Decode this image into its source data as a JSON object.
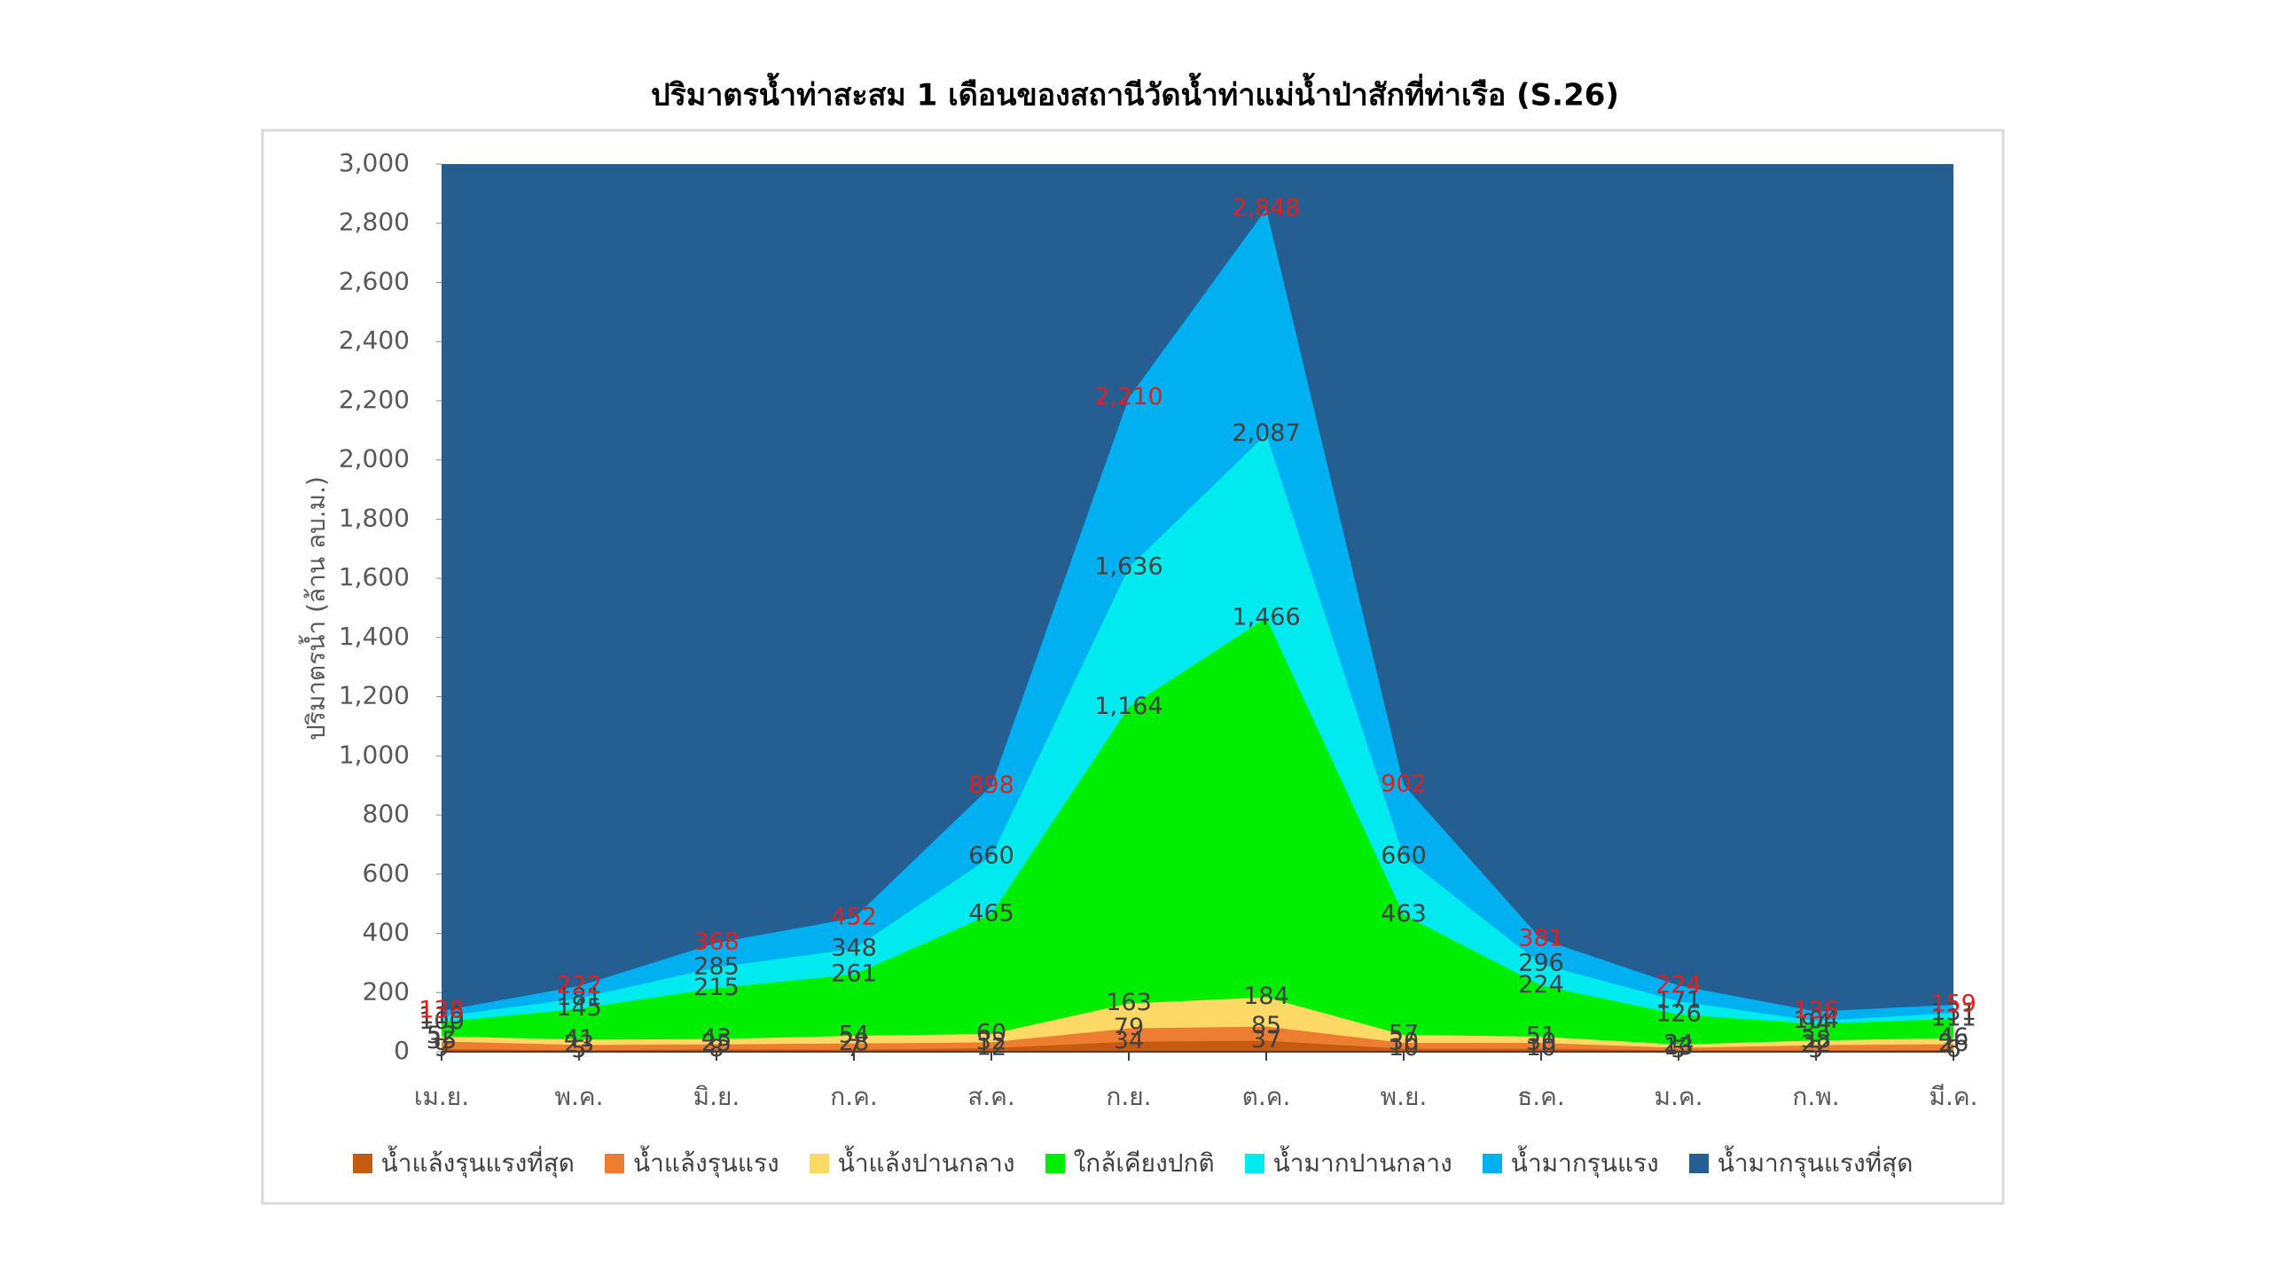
{
  "chart_data": {
    "type": "area",
    "title": "ปริมาตรน้ำท่าสะสม 1 เดือนของสถานีวัดน้ำท่าแม่น้ำป่าสักที่ท่าเรือ (S.26)",
    "y_label": "ปริมาตรน้ำ (ล้าน ลบ.ม.)",
    "categories": [
      "เม.ย.",
      "พ.ค.",
      "มิ.ย.",
      "ก.ค.",
      "ส.ค.",
      "ก.ย.",
      "ต.ค.",
      "พ.ย.",
      "ธ.ค.",
      "ม.ค.",
      "ก.พ.",
      "มี.ค."
    ],
    "ylim": [
      0,
      3000
    ],
    "yticks": [
      0,
      200,
      400,
      600,
      800,
      {
        "value": 1000,
        "label": "1,000"
      },
      {
        "value": 1200,
        "label": "1,200"
      },
      {
        "value": 1400,
        "label": "1,400"
      },
      {
        "value": 1600,
        "label": "1,600"
      },
      {
        "value": 1800,
        "label": "1,800"
      },
      {
        "value": 2000,
        "label": "2,000"
      },
      {
        "value": 2200,
        "label": "2,200"
      },
      {
        "value": 2400,
        "label": "2,400"
      },
      {
        "value": 2600,
        "label": "2,600"
      },
      {
        "value": 2800,
        "label": "2,800"
      },
      {
        "value": 3000,
        "label": "3,000"
      }
    ],
    "legend": "bottom",
    "series": [
      {
        "name": "น้ำแล้งรุนแรงที่สุด",
        "color": "#c55a11",
        "label_color": "#404040",
        "values": [
          9,
          5,
          8,
          7,
          12,
          34,
          37,
          10,
          10,
          5,
          5,
          6
        ]
      },
      {
        "name": "น้ำแล้งรุนแรง",
        "color": "#ed7d31",
        "label_color": "#404040",
        "values": [
          35,
          23,
          25,
          28,
          32,
          79,
          85,
          30,
          30,
          13,
          22,
          26
        ]
      },
      {
        "name": "น้ำแล้งปานกลาง",
        "color": "#ffd966",
        "label_color": "#404040",
        "values": [
          52,
          41,
          43,
          54,
          60,
          163,
          184,
          57,
          51,
          24,
          38,
          46
        ]
      },
      {
        "name": "ใกล้เคียงปกติ",
        "color": "#00ee00",
        "label_color": "#404040",
        "values": [
          100,
          145,
          215,
          261,
          465,
          1164,
          1466,
          463,
          224,
          126,
          94,
          111
        ],
        "value_labels": [
          "100",
          "145",
          "215",
          "261",
          "465",
          "1,164",
          "1,466",
          "463",
          "224",
          "126",
          "94",
          "111"
        ]
      },
      {
        "name": "น้ำมากปานกลาง",
        "color": "#00eaf0",
        "label_color": "#404040",
        "values": [
          119,
          181,
          285,
          348,
          660,
          1636,
          2087,
          660,
          296,
          171,
          104,
          131
        ],
        "value_labels": [
          "119",
          "181",
          "285",
          "348",
          "660",
          "1,636",
          "2,087",
          "660",
          "296",
          "171",
          "104",
          "131"
        ]
      },
      {
        "name": "น้ำมากรุนแรง",
        "color": "#00b0f0",
        "label_color": "#e02020",
        "values": [
          138,
          222,
          368,
          452,
          898,
          2210,
          2848,
          902,
          381,
          224,
          136,
          159
        ],
        "value_labels": [
          "138",
          "222",
          "368",
          "452",
          "898",
          "2,210",
          "2,848",
          "902",
          "381",
          "224",
          "136",
          "159"
        ]
      },
      {
        "name": "น้ำมากรุนแรงที่สุด",
        "color": "#255e91",
        "values": [
          3000,
          3000,
          3000,
          3000,
          3000,
          3000,
          3000,
          3000,
          3000,
          3000,
          3000,
          3000
        ]
      }
    ]
  }
}
